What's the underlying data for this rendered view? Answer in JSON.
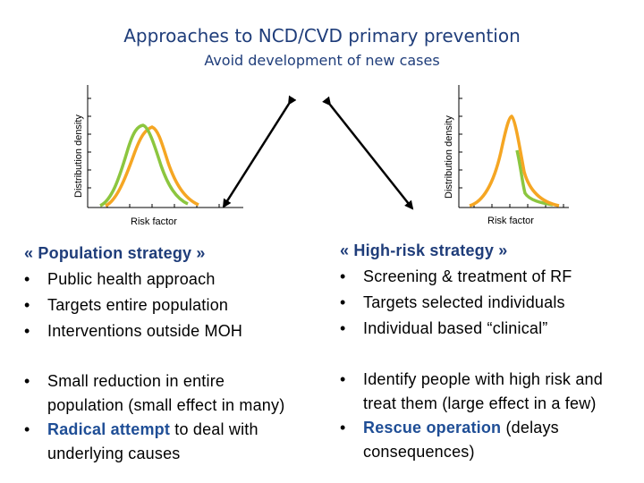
{
  "slide": {
    "title": "Approaches to NCD/CVD primary prevention",
    "subtitle": "Avoid development of new cases"
  },
  "colors": {
    "orange": "#f5a623",
    "green": "#8cc63f",
    "heading": "#1f3d7a",
    "highlight": "#1f4e96"
  },
  "left_chart": {
    "ylabel": "Distribution density",
    "xlabel": "Risk factor"
  },
  "right_chart": {
    "ylabel": "Distribution density",
    "xlabel": "Risk factor"
  },
  "left_column": {
    "heading": "« Population strategy »",
    "bullets": [
      "Public health approach",
      "Targets entire population",
      "Interventions outside MOH"
    ],
    "effects": {
      "item1_line1": "Small reduction in entire",
      "item1_line2": "population (small effect in many)",
      "item2_highlight": "Radical attempt",
      "item2_rest": " to deal with",
      "item2_line2": "underlying causes"
    }
  },
  "right_column": {
    "heading": "« High-risk strategy »",
    "bullets": [
      "Screening & treatment of RF",
      "Targets selected individuals",
      "Individual based “clinical”"
    ],
    "effects": {
      "item1_line1": "Identify people with high risk and",
      "item1_line2": "treat them (large effect in a few)",
      "item2_highlight": "Rescue operation",
      "item2_rest": " (delays",
      "item2_line2": "consequences)"
    }
  },
  "bullet_char": "•"
}
